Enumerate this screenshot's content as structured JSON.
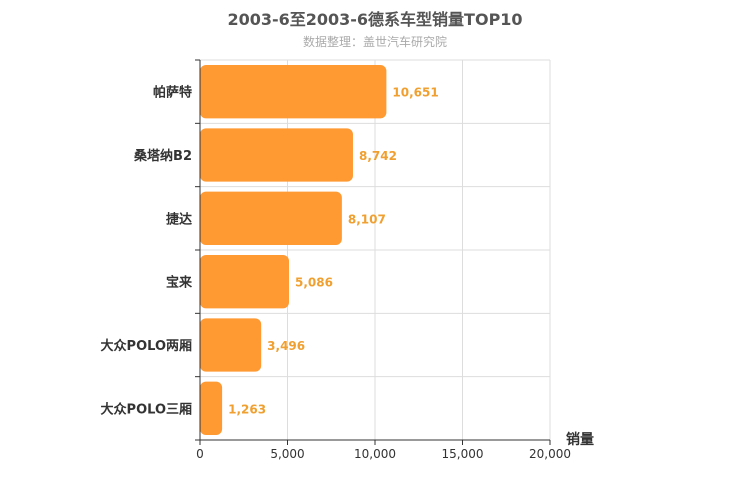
{
  "chart_data": {
    "type": "bar",
    "orientation": "horizontal",
    "title": "2003-6至2003-6德系车型销量TOP10",
    "subtitle": "数据整理：盖世汽车研究院",
    "categories": [
      "帕萨特",
      "桑塔纳B2",
      "捷达",
      "宝来",
      "大众POLO两厢",
      "大众POLO三厢"
    ],
    "values": [
      10651,
      8742,
      8107,
      5086,
      3496,
      1263
    ],
    "value_labels": [
      "10,651",
      "8,742",
      "8,107",
      "5,086",
      "3,496",
      "1,263"
    ],
    "xlabel": "销量",
    "ylabel": "",
    "xlim": [
      0,
      20000
    ],
    "xticks": [
      0,
      5000,
      10000,
      15000,
      20000
    ],
    "xtick_labels": [
      "0",
      "5,000",
      "10,000",
      "15,000",
      "20,000"
    ],
    "grid": true,
    "legend": "none",
    "bar_color": "#ff9a33",
    "value_label_color": "#f0a030"
  }
}
